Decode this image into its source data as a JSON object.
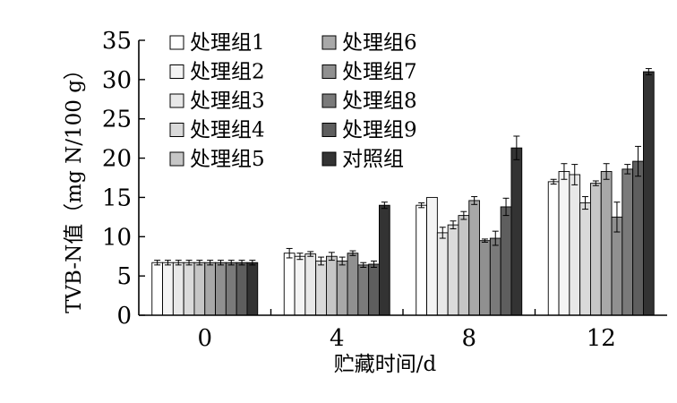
{
  "chart_data": {
    "type": "bar",
    "title": "",
    "xlabel": "贮藏时间/d",
    "ylabel": "TVB-N值（mg N/100 g）",
    "ylim": [
      0,
      35
    ],
    "yticks": [
      0,
      5,
      10,
      15,
      20,
      25,
      30,
      35
    ],
    "categories": [
      "0",
      "4",
      "8",
      "12"
    ],
    "legend_position": "top-left",
    "series": [
      {
        "name": "处理组1",
        "color": "#ffffff",
        "values": [
          6.7,
          7.9,
          14.0,
          17.0
        ],
        "errors": [
          0.3,
          0.6,
          0.3,
          0.3
        ]
      },
      {
        "name": "处理组2",
        "color": "#f4f4f4",
        "values": [
          6.7,
          7.5,
          15.0,
          18.3
        ],
        "errors": [
          0.3,
          0.4,
          0.0,
          1.0
        ]
      },
      {
        "name": "处理组3",
        "color": "#e8e8e8",
        "values": [
          6.7,
          7.8,
          10.5,
          17.9
        ],
        "errors": [
          0.3,
          0.3,
          0.7,
          1.3
        ]
      },
      {
        "name": "处理组4",
        "color": "#dadada",
        "values": [
          6.7,
          6.9,
          11.5,
          14.3
        ],
        "errors": [
          0.3,
          0.5,
          0.5,
          0.8
        ]
      },
      {
        "name": "处理组5",
        "color": "#c6c6c6",
        "values": [
          6.7,
          7.5,
          12.7,
          16.8
        ],
        "errors": [
          0.3,
          0.5,
          0.5,
          0.3
        ]
      },
      {
        "name": "处理组6",
        "color": "#a8a8a8",
        "values": [
          6.7,
          6.9,
          14.6,
          18.3
        ],
        "errors": [
          0.3,
          0.5,
          0.5,
          1.0
        ]
      },
      {
        "name": "处理组7",
        "color": "#909090",
        "values": [
          6.7,
          7.9,
          9.5,
          12.5
        ],
        "errors": [
          0.3,
          0.3,
          0.2,
          1.9
        ]
      },
      {
        "name": "处理组8",
        "color": "#7a7a7a",
        "values": [
          6.7,
          6.4,
          9.8,
          18.6
        ],
        "errors": [
          0.3,
          0.3,
          0.9,
          0.6
        ]
      },
      {
        "name": "处理组9",
        "color": "#5e5e5e",
        "values": [
          6.7,
          6.5,
          13.8,
          19.6
        ],
        "errors": [
          0.3,
          0.4,
          1.1,
          1.9
        ]
      },
      {
        "name": "对照组",
        "color": "#333333",
        "values": [
          6.7,
          14.0,
          21.3,
          31.0
        ],
        "errors": [
          0.3,
          0.4,
          1.5,
          0.4
        ]
      }
    ]
  }
}
